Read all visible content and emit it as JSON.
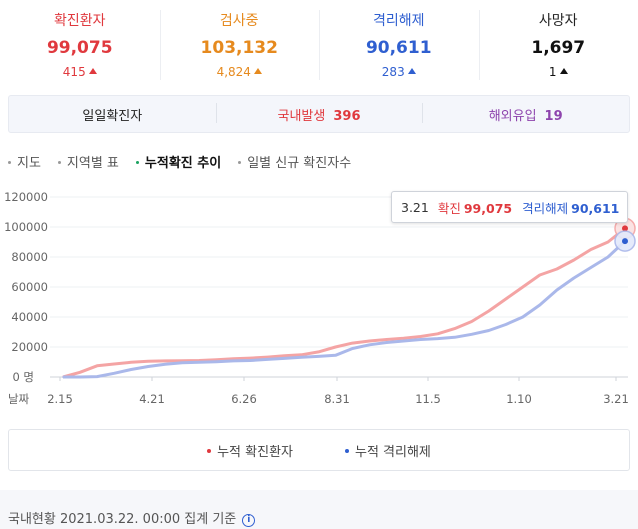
{
  "stats": [
    {
      "label": "확진환자",
      "value": "99,075",
      "delta": "415",
      "color": "#e0393e"
    },
    {
      "label": "검사중",
      "value": "103,132",
      "delta": "4,824",
      "color": "#e68a1e"
    },
    {
      "label": "격리해제",
      "value": "90,611",
      "delta": "283",
      "color": "#2f5fd0"
    },
    {
      "label": "사망자",
      "value": "1,697",
      "delta": "1",
      "color": "#111111"
    }
  ],
  "daily": {
    "title": "일일확진자",
    "domestic_label": "국내발생",
    "domestic_value": "396",
    "overseas_label": "해외유입",
    "overseas_value": "19",
    "domestic_color": "#e0393e",
    "overseas_color": "#8e44ad"
  },
  "tabs": [
    {
      "label": "지도",
      "active": false
    },
    {
      "label": "지역별 표",
      "active": false
    },
    {
      "label": "누적확진 추이",
      "active": true
    },
    {
      "label": "일별 신규 확진자수",
      "active": false
    }
  ],
  "tooltip": {
    "date": "3.21",
    "confirmed_label": "확진",
    "confirmed_value": "99,075",
    "released_label": "격리해제",
    "released_value": "90,611"
  },
  "chart_data": {
    "type": "line",
    "y_ticks": [
      "0 명",
      "20000",
      "40000",
      "60000",
      "80000",
      "100000",
      "120000"
    ],
    "x_axis_label": "날짜",
    "x_ticks": [
      "2.15",
      "4.21",
      "6.26",
      "8.31",
      "11.5",
      "1.10",
      "3.21"
    ],
    "ylim": [
      0,
      120000
    ],
    "grid": true,
    "x": [
      "2.15",
      "2.29",
      "3.10",
      "3.20",
      "3.31",
      "4.10",
      "4.21",
      "5.01",
      "5.15",
      "6.01",
      "6.15",
      "6.26",
      "7.10",
      "7.25",
      "8.10",
      "8.20",
      "8.31",
      "9.15",
      "10.01",
      "10.15",
      "10.25",
      "11.05",
      "11.15",
      "11.25",
      "12.05",
      "12.15",
      "12.25",
      "1.03",
      "1.10",
      "1.20",
      "2.01",
      "2.15",
      "3.01",
      "3.21"
    ],
    "series": [
      {
        "name": "누적 확진환자",
        "color": "#f4a4a4",
        "values": [
          30,
          3150,
          7500,
          8650,
          9800,
          10450,
          10700,
          10800,
          11000,
          11500,
          12100,
          12600,
          13300,
          14100,
          14800,
          16700,
          20000,
          22600,
          24000,
          25000,
          25800,
          27000,
          28800,
          32300,
          37000,
          44000,
          52000,
          60000,
          68000,
          72000,
          78000,
          85000,
          90000,
          99075
        ]
      },
      {
        "name": "누적 격리해제",
        "color": "#aab8ea",
        "values": [
          0,
          30,
          300,
          2500,
          5000,
          7000,
          8500,
          9500,
          9800,
          10200,
          10700,
          11000,
          11700,
          12400,
          13100,
          13700,
          14500,
          19000,
          21500,
          23000,
          24000,
          25000,
          25600,
          26500,
          28500,
          31000,
          35000,
          40000,
          48000,
          58000,
          66000,
          73000,
          80000,
          90611
        ]
      }
    ]
  },
  "legend": [
    {
      "label": "누적 확진환자",
      "color": "#e0393e"
    },
    {
      "label": "누적 격리해제",
      "color": "#2f5fd0"
    }
  ],
  "footer": {
    "text": "국내현황 2021.03.22. 00:00 집계 기준",
    "icon": "info-icon"
  }
}
